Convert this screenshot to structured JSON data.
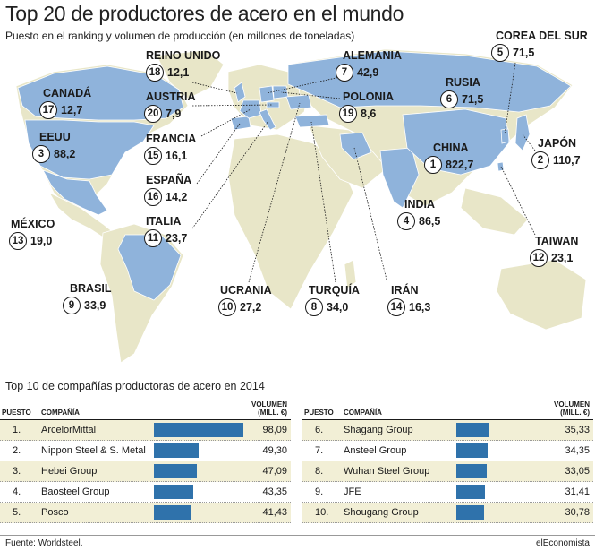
{
  "title": "Top 20 de productores de acero en el mundo",
  "subtitle": "Puesto en el ranking y volumen de producción (en millones de toneladas)",
  "colors": {
    "highlight": "#8fb3db",
    "land": "#e8e6c8",
    "bar": "#2f72ab",
    "row_alt": "#f2efd6"
  },
  "chart_data": [
    {
      "type": "map",
      "title": "Top 20 de productores de acero en el mundo",
      "unit": "millones de toneladas",
      "countries": [
        {
          "name": "CHINA",
          "rank": "1",
          "value": "822,7"
        },
        {
          "name": "JAPÓN",
          "rank": "2",
          "value": "110,7"
        },
        {
          "name": "EEUU",
          "rank": "3",
          "value": "88,2"
        },
        {
          "name": "INDIA",
          "rank": "4",
          "value": "86,5"
        },
        {
          "name": "COREA DEL SUR",
          "rank": "5",
          "value": "71,5"
        },
        {
          "name": "RUSIA",
          "rank": "6",
          "value": "71,5"
        },
        {
          "name": "ALEMANIA",
          "rank": "7",
          "value": "42,9"
        },
        {
          "name": "TURQUÍA",
          "rank": "8",
          "value": "34,0"
        },
        {
          "name": "BRASIL",
          "rank": "9",
          "value": "33,9"
        },
        {
          "name": "UCRANIA",
          "rank": "10",
          "value": "27,2"
        },
        {
          "name": "ITALIA",
          "rank": "11",
          "value": "23,7"
        },
        {
          "name": "TAIWAN",
          "rank": "12",
          "value": "23,1"
        },
        {
          "name": "MÉXICO",
          "rank": "13",
          "value": "19,0"
        },
        {
          "name": "IRÁN",
          "rank": "14",
          "value": "16,3"
        },
        {
          "name": "FRANCIA",
          "rank": "15",
          "value": "16,1"
        },
        {
          "name": "ESPAÑA",
          "rank": "16",
          "value": "14,2"
        },
        {
          "name": "CANADÁ",
          "rank": "17",
          "value": "12,7"
        },
        {
          "name": "REINO UNIDO",
          "rank": "18",
          "value": "12,1"
        },
        {
          "name": "POLONIA",
          "rank": "19",
          "value": "8,6"
        },
        {
          "name": "AUSTRIA",
          "rank": "20",
          "value": "7,9"
        }
      ]
    },
    {
      "type": "table",
      "title": "Top 10 de compañías productoras de acero en 2014",
      "headers": {
        "rank": "PUESTO",
        "company": "COMPAÑÍA",
        "volume": "VOLUMEN",
        "unit": "(MILL. €)"
      },
      "bar_max": 100,
      "rows": [
        {
          "rank": "1.",
          "company": "ArcelorMittal",
          "value": 98.09,
          "label": "98,09"
        },
        {
          "rank": "2.",
          "company": "Nippon Steel & S. Metal",
          "value": 49.3,
          "label": "49,30"
        },
        {
          "rank": "3.",
          "company": "Hebei Group",
          "value": 47.09,
          "label": "47,09"
        },
        {
          "rank": "4.",
          "company": "Baosteel Group",
          "value": 43.35,
          "label": "43,35"
        },
        {
          "rank": "5.",
          "company": "Posco",
          "value": 41.43,
          "label": "41,43"
        },
        {
          "rank": "6.",
          "company": "Shagang Group",
          "value": 35.33,
          "label": "35,33"
        },
        {
          "rank": "7.",
          "company": "Ansteel Group",
          "value": 34.35,
          "label": "34,35"
        },
        {
          "rank": "8.",
          "company": "Wuhan Steel Group",
          "value": 33.05,
          "label": "33,05"
        },
        {
          "rank": "9.",
          "company": "JFE",
          "value": 31.41,
          "label": "31,41"
        },
        {
          "rank": "10.",
          "company": "Shougang Group",
          "value": 30.78,
          "label": "30,78"
        }
      ]
    }
  ],
  "footer": {
    "source": "Fuente: Worldsteel.",
    "brand": "elEconomista"
  }
}
